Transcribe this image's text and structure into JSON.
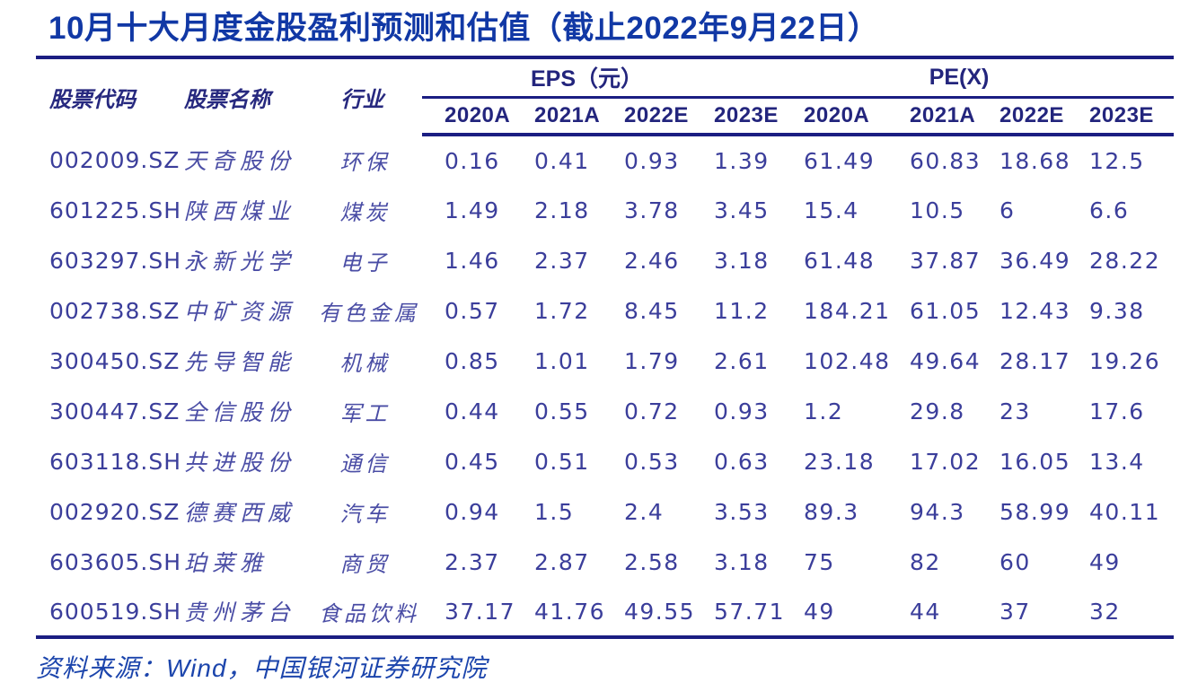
{
  "title": "10月十大月度金股盈利预测和估值（截止2022年9月22日）",
  "table": {
    "column_headers": {
      "code": "股票代码",
      "name": "股票名称",
      "industry": "行业"
    },
    "group_headers": {
      "eps": "EPS（元）",
      "pe": "PE(X)"
    },
    "year_headers": [
      "2020A",
      "2021A",
      "2022E",
      "2023E",
      "2020A",
      "2021A",
      "2022E",
      "2023E"
    ],
    "rows": [
      {
        "code": "002009.SZ",
        "name": "天奇股份",
        "industry": "环保",
        "eps": [
          "0.16",
          "0.41",
          "0.93",
          "1.39"
        ],
        "pe": [
          "61.49",
          "60.83",
          "18.68",
          "12.5"
        ]
      },
      {
        "code": "601225.SH",
        "name": "陕西煤业",
        "industry": "煤炭",
        "eps": [
          "1.49",
          "2.18",
          "3.78",
          "3.45"
        ],
        "pe": [
          "15.4",
          "10.5",
          "6",
          "6.6"
        ]
      },
      {
        "code": "603297.SH",
        "name": "永新光学",
        "industry": "电子",
        "eps": [
          "1.46",
          "2.37",
          "2.46",
          "3.18"
        ],
        "pe": [
          "61.48",
          "37.87",
          "36.49",
          "28.22"
        ]
      },
      {
        "code": "002738.SZ",
        "name": "中矿资源",
        "industry": "有色金属",
        "eps": [
          "0.57",
          "1.72",
          "8.45",
          "11.2"
        ],
        "pe": [
          "184.21",
          "61.05",
          "12.43",
          "9.38"
        ]
      },
      {
        "code": "300450.SZ",
        "name": "先导智能",
        "industry": "机械",
        "eps": [
          "0.85",
          "1.01",
          "1.79",
          "2.61"
        ],
        "pe": [
          "102.48",
          "49.64",
          "28.17",
          "19.26"
        ]
      },
      {
        "code": "300447.SZ",
        "name": "全信股份",
        "industry": "军工",
        "eps": [
          "0.44",
          "0.55",
          "0.72",
          "0.93"
        ],
        "pe": [
          "1.2",
          "29.8",
          "23",
          "17.6"
        ]
      },
      {
        "code": "603118.SH",
        "name": "共进股份",
        "industry": "通信",
        "eps": [
          "0.45",
          "0.51",
          "0.53",
          "0.63"
        ],
        "pe": [
          "23.18",
          "17.02",
          "16.05",
          "13.4"
        ]
      },
      {
        "code": "002920.SZ",
        "name": "德赛西威",
        "industry": "汽车",
        "eps": [
          "0.94",
          "1.5",
          "2.4",
          "3.53"
        ],
        "pe": [
          "89.3",
          "94.3",
          "58.99",
          "40.11"
        ]
      },
      {
        "code": "603605.SH",
        "name": "珀莱雅",
        "industry": "商贸",
        "eps": [
          "2.37",
          "2.87",
          "2.58",
          "3.18"
        ],
        "pe": [
          "75",
          "82",
          "60",
          "49"
        ]
      },
      {
        "code": "600519.SH",
        "name": "贵州茅台",
        "industry": "食品饮料",
        "eps": [
          "37.17",
          "41.76",
          "49.55",
          "57.71"
        ],
        "pe": [
          "49",
          "44",
          "37",
          "32"
        ]
      }
    ]
  },
  "source": "资料来源：Wind，中国银河证券研究院",
  "colors": {
    "title_blue": "#1138a5",
    "rule_navy": "#1b1e82",
    "data_indigo": "#3b3e9b",
    "name_violet": "#4a4da5",
    "source_blue": "#1c45ac"
  }
}
